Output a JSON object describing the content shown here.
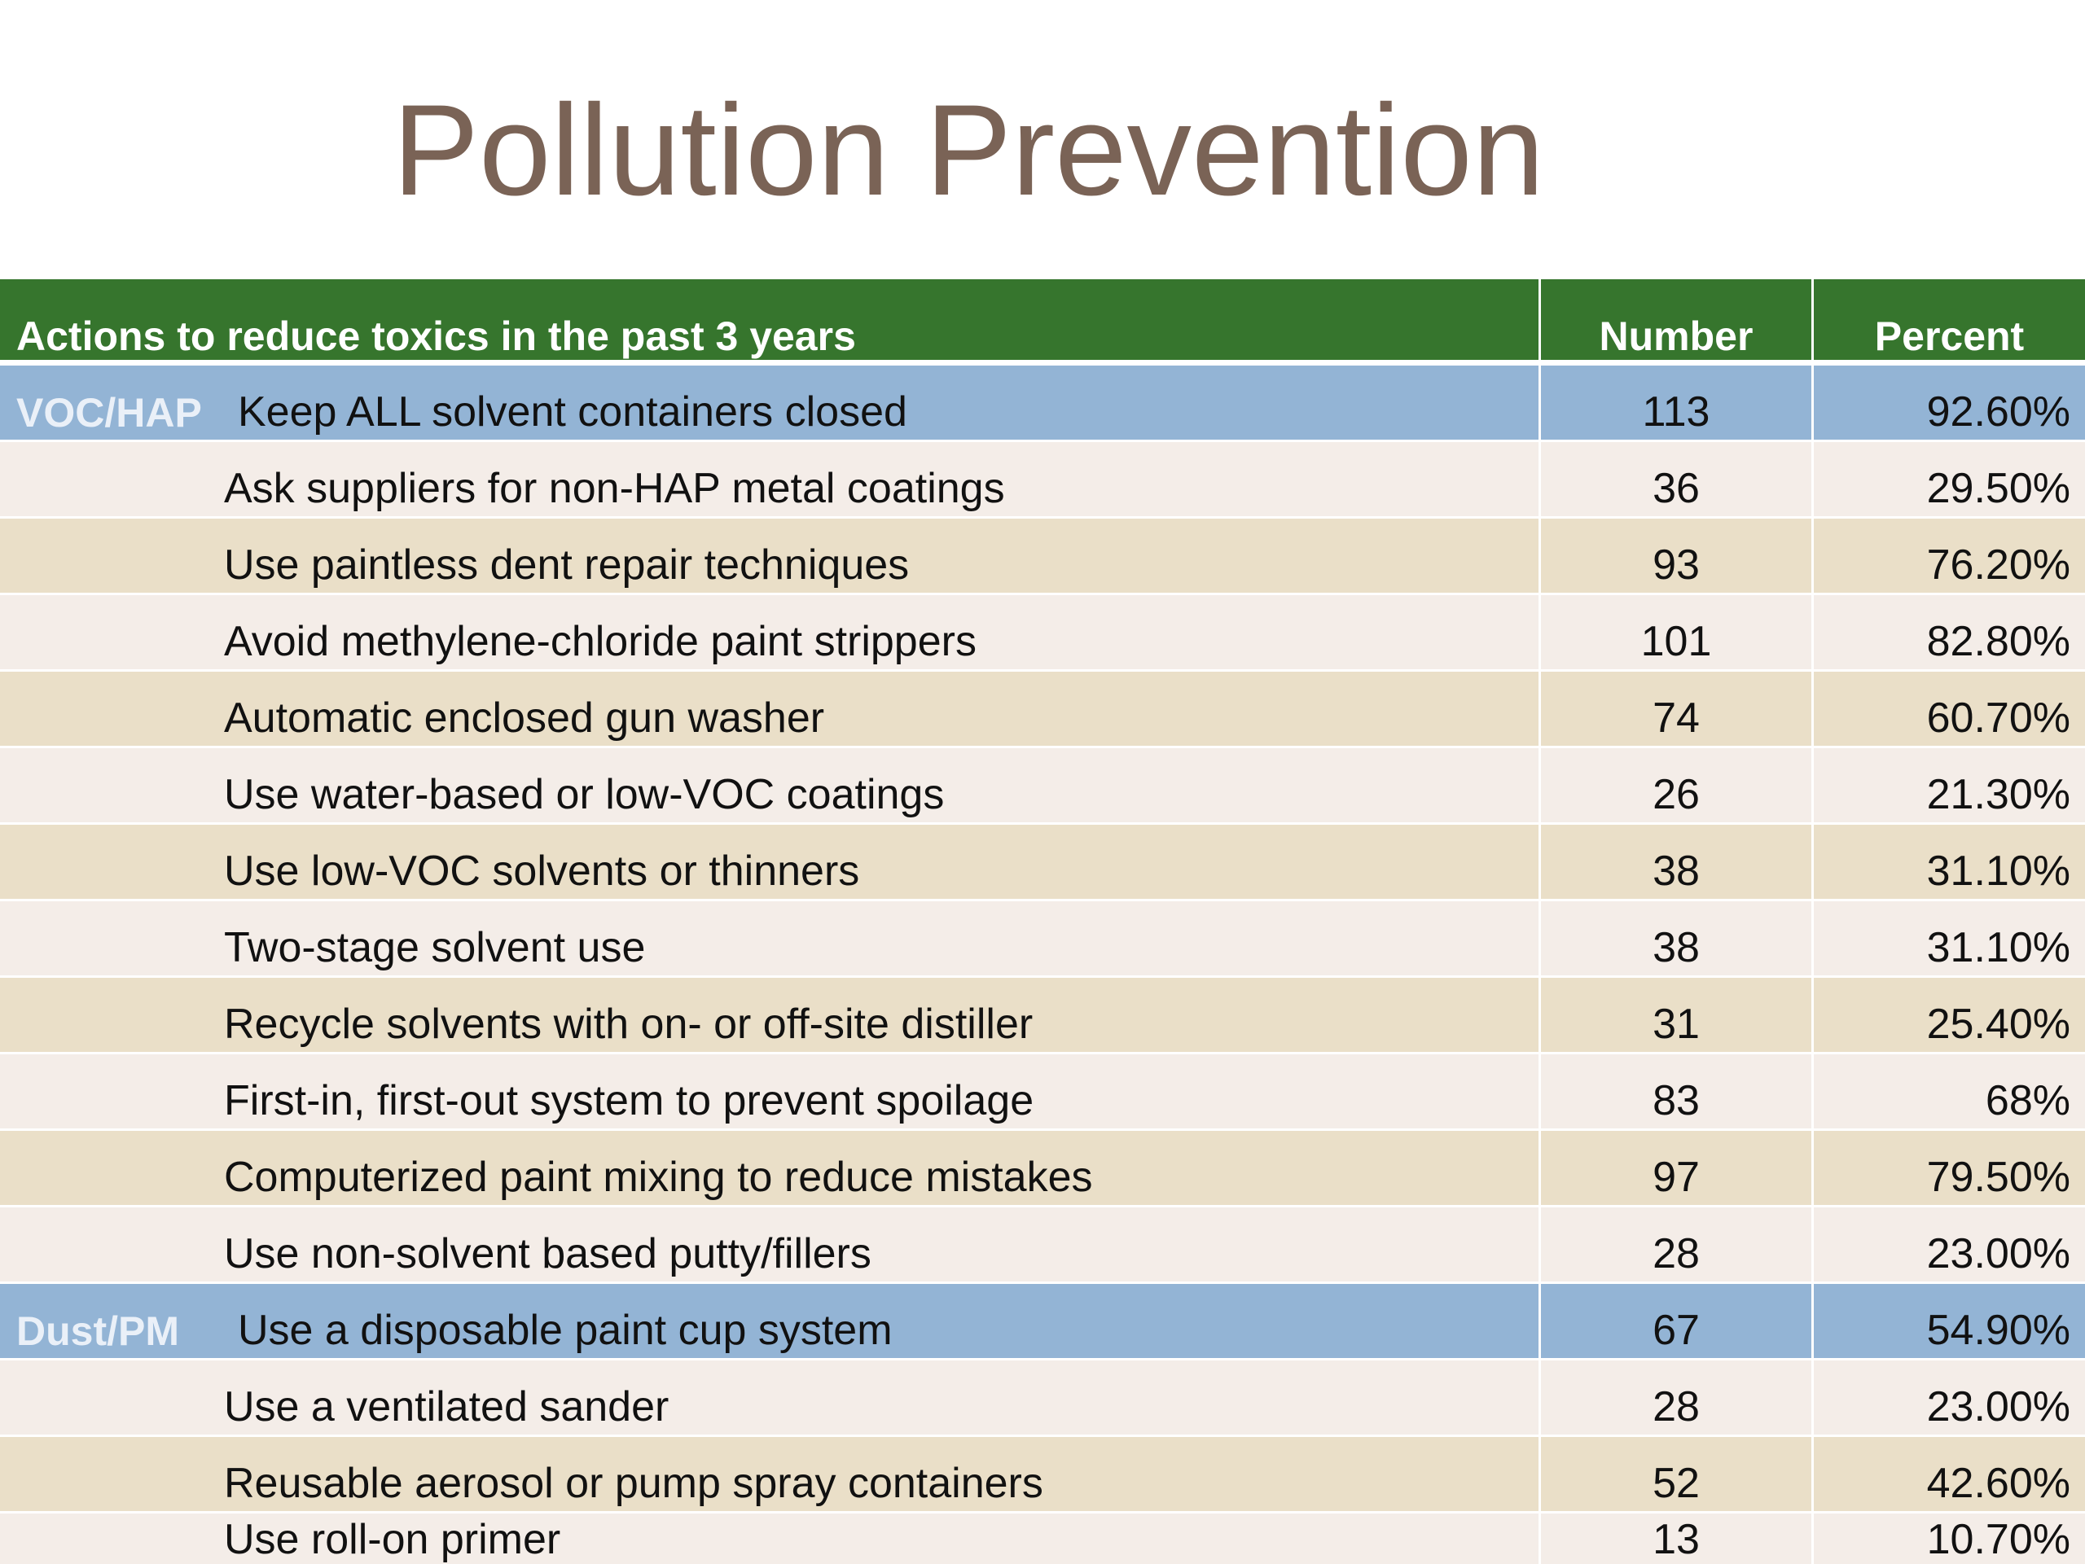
{
  "title": "Pollution Prevention",
  "table": {
    "headers": {
      "action": "Actions to reduce toxics in the past 3 years",
      "number": "Number",
      "percent": "Percent"
    },
    "rows": [
      {
        "category": "VOC/HAP",
        "action": "Keep ALL solvent containers closed",
        "number": "113",
        "percent": "92.60%"
      },
      {
        "category": "",
        "action": "Ask suppliers for non-HAP metal coatings",
        "number": "36",
        "percent": "29.50%"
      },
      {
        "category": "",
        "action": "Use paintless dent repair techniques",
        "number": "93",
        "percent": "76.20%"
      },
      {
        "category": "",
        "action": "Avoid methylene-chloride paint strippers",
        "number": "101",
        "percent": "82.80%"
      },
      {
        "category": "",
        "action": "Automatic enclosed gun washer",
        "number": "74",
        "percent": "60.70%"
      },
      {
        "category": "",
        "action": "Use water-based or low-VOC coatings",
        "number": "26",
        "percent": "21.30%"
      },
      {
        "category": "",
        "action": "Use low-VOC solvents or thinners",
        "number": "38",
        "percent": "31.10%"
      },
      {
        "category": "",
        "action": "Two-stage solvent use",
        "number": "38",
        "percent": "31.10%"
      },
      {
        "category": "",
        "action": "Recycle solvents with on- or off-site distiller",
        "number": "31",
        "percent": "25.40%"
      },
      {
        "category": "",
        "action": "First-in, first-out system to prevent spoilage",
        "number": "83",
        "percent": "68%"
      },
      {
        "category": "",
        "action": "Computerized paint mixing to reduce mistakes",
        "number": "97",
        "percent": "79.50%"
      },
      {
        "category": "",
        "action": "Use non-solvent based putty/fillers",
        "number": "28",
        "percent": "23.00%"
      },
      {
        "category": "Dust/PM",
        "action": "Use a disposable paint cup system",
        "number": "67",
        "percent": "54.90%"
      },
      {
        "category": "",
        "action": "Use a ventilated sander",
        "number": "28",
        "percent": "23.00%"
      },
      {
        "category": "",
        "action": "Reusable aerosol or pump spray containers",
        "number": "52",
        "percent": "42.60%"
      },
      {
        "category": "",
        "action": "Use roll-on primer",
        "number": "13",
        "percent": "10.70%"
      }
    ]
  },
  "colors": {
    "title": "#7a6356",
    "header_bg": "#36752d",
    "category_row_bg": "#93b4d5",
    "row_light_bg": "#f4ede8",
    "row_tan_bg": "#eadfc8"
  }
}
